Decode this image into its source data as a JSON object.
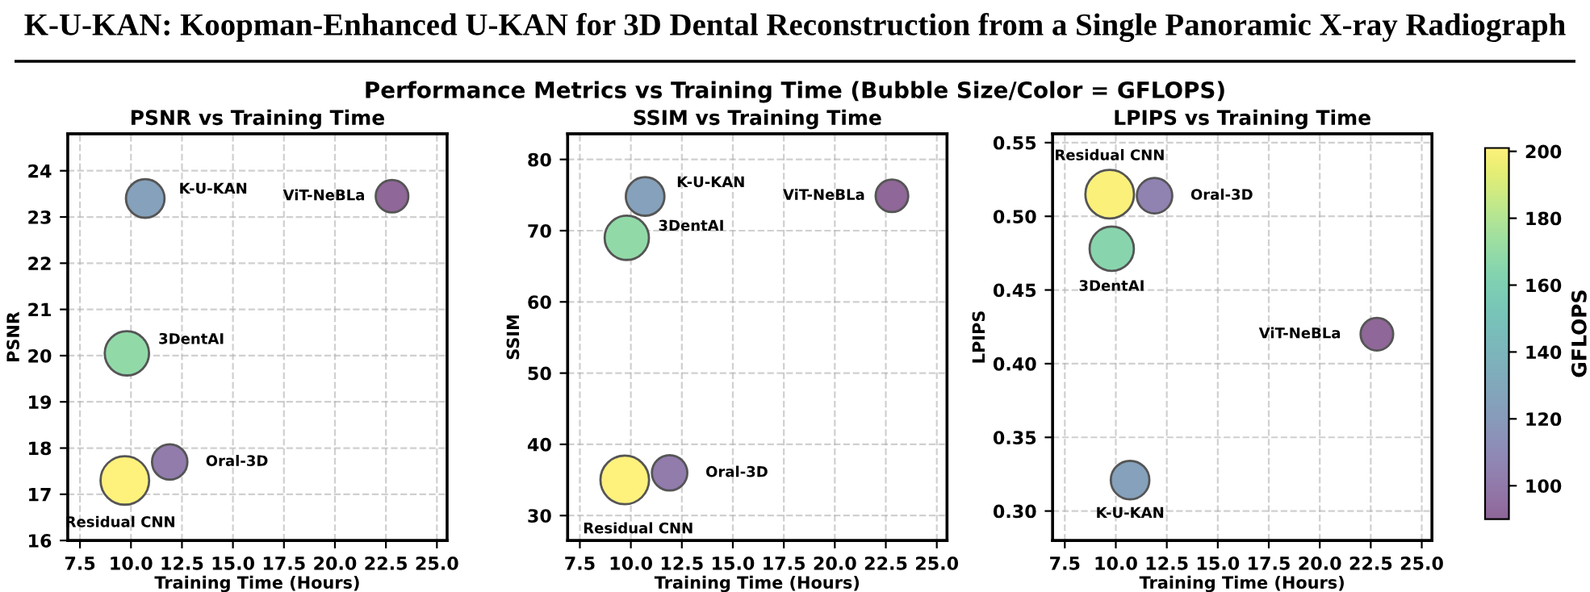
{
  "chart_data": [
    {
      "type": "bubble",
      "title": "PSNR vs Training Time",
      "xlabel": "Training Time (Hours)",
      "ylabel": "PSNR",
      "annotations": [
        "K-U-KAN: Koopman-Enhanced U-KAN for 3D Dental Reconstruction from a Single Panoramic X-ray Radiograph",
        "Performance Metrics vs Training Time (Bubble Size/Color = GFLOPS)"
      ],
      "xlim": [
        6.9,
        25.5
      ],
      "xticks": [
        {
          "value": 7.5,
          "label": "7.5"
        },
        {
          "value": 10,
          "label": "10.0"
        },
        {
          "value": 12.5,
          "label": "12.5"
        },
        {
          "value": 15,
          "label": "15.0"
        },
        {
          "value": 17.5,
          "label": "17.5"
        },
        {
          "value": 20,
          "label": "20.0"
        },
        {
          "value": 22.5,
          "label": "22.5"
        },
        {
          "value": 25,
          "label": "25.0"
        }
      ],
      "ylim": [
        16,
        24.8
      ],
      "yticks": [
        16,
        17,
        18,
        19,
        20,
        21,
        22,
        23,
        24
      ],
      "grid": true,
      "marker": "circle",
      "series": [
        {
          "name": "K-U-KAN",
          "x": [
            10.7
          ],
          "values": [
            23.4
          ],
          "sizes": [
            0.63
          ],
          "color": "#85a1bb"
        },
        {
          "name": "ViT-NeBLa",
          "x": [
            22.8
          ],
          "values": [
            23.45
          ],
          "sizes": [
            0.45
          ],
          "color": "#8f6798"
        },
        {
          "name": "3DentAI",
          "x": [
            9.8
          ],
          "values": [
            20.05
          ],
          "sizes": [
            0.83
          ],
          "color": "#91daa8"
        },
        {
          "name": "Oral-3D",
          "x": [
            11.9
          ],
          "values": [
            17.7
          ],
          "sizes": [
            0.53
          ],
          "color": "#917cac"
        },
        {
          "name": "Residual CNN",
          "x": [
            9.7
          ],
          "values": [
            17.3
          ],
          "sizes": [
            1.0
          ],
          "color": "#fef17c"
        }
      ]
    },
    {
      "type": "bubble",
      "title": "SSIM vs Training Time",
      "xlabel": "Training Time (Hours)",
      "ylabel": "SSIM",
      "xlim": [
        6.9,
        25.5
      ],
      "xticks": [
        {
          "value": 7.5,
          "label": "7.5"
        },
        {
          "value": 10,
          "label": "10.0"
        },
        {
          "value": 12.5,
          "label": "12.5"
        },
        {
          "value": 15,
          "label": "15.0"
        },
        {
          "value": 17.5,
          "label": "17.5"
        },
        {
          "value": 20,
          "label": "20.0"
        },
        {
          "value": 22.5,
          "label": "22.5"
        },
        {
          "value": 25,
          "label": "25.0"
        }
      ],
      "ylim": [
        26.5,
        83.6
      ],
      "yticks": [
        30,
        40,
        50,
        60,
        70,
        80
      ],
      "grid": true,
      "marker": "circle",
      "series": [
        {
          "name": "K-U-KAN",
          "x": [
            10.7
          ],
          "values": [
            74.8
          ],
          "sizes": [
            0.63
          ],
          "color": "#85a1bb"
        },
        {
          "name": "ViT-NeBLa",
          "x": [
            22.8
          ],
          "values": [
            74.9
          ],
          "sizes": [
            0.45
          ],
          "color": "#8f6798"
        },
        {
          "name": "3DentAI",
          "x": [
            9.8
          ],
          "values": [
            69.0
          ],
          "sizes": [
            0.83
          ],
          "color": "#91daa8"
        },
        {
          "name": "Oral-3D",
          "x": [
            11.9
          ],
          "values": [
            36.0
          ],
          "sizes": [
            0.53
          ],
          "color": "#917cac"
        },
        {
          "name": "Residual CNN",
          "x": [
            9.7
          ],
          "values": [
            35.0
          ],
          "sizes": [
            1.0
          ],
          "color": "#fef17c"
        }
      ]
    },
    {
      "type": "bubble",
      "title": "LPIPS vs Training Time",
      "xlabel": "Training Time (Hours)",
      "ylabel": "LPIPS",
      "clabel": "GFLOPS",
      "xlim": [
        6.9,
        25.5
      ],
      "xticks": [
        {
          "value": 7.5,
          "label": "7.5"
        },
        {
          "value": 10,
          "label": "10.0"
        },
        {
          "value": 12.5,
          "label": "12.5"
        },
        {
          "value": 15,
          "label": "15.0"
        },
        {
          "value": 17.5,
          "label": "17.5"
        },
        {
          "value": 20,
          "label": "20.0"
        },
        {
          "value": 22.5,
          "label": "22.5"
        },
        {
          "value": 25,
          "label": "25.0"
        }
      ],
      "ylim": [
        0.28,
        0.556
      ],
      "yticks": [
        {
          "value": 0.3,
          "label": "0.30"
        },
        {
          "value": 0.35,
          "label": "0.35"
        },
        {
          "value": 0.4,
          "label": "0.40"
        },
        {
          "value": 0.45,
          "label": "0.45"
        },
        {
          "value": 0.5,
          "label": "0.50"
        },
        {
          "value": 0.55,
          "label": "0.55"
        }
      ],
      "grid": true,
      "marker": "circle",
      "clim": [
        90,
        201
      ],
      "cticks": [
        100,
        120,
        140,
        160,
        180,
        200
      ],
      "series": [
        {
          "name": "K-U-KAN",
          "x": [
            10.7
          ],
          "values": [
            0.321
          ],
          "sizes": [
            0.63
          ],
          "cvalues": [
            125
          ]
        },
        {
          "name": "ViT-NeBLa",
          "x": [
            22.8
          ],
          "values": [
            0.42
          ],
          "sizes": [
            0.45
          ],
          "cvalues": [
            90
          ]
        },
        {
          "name": "3DentAI",
          "x": [
            9.8
          ],
          "values": [
            0.478
          ],
          "sizes": [
            0.83
          ],
          "cvalues": [
            165
          ]
        },
        {
          "name": "Oral-3D",
          "x": [
            11.9
          ],
          "values": [
            0.514
          ],
          "sizes": [
            0.53
          ],
          "cvalues": [
            105
          ]
        },
        {
          "name": "Residual CNN",
          "x": [
            9.7
          ],
          "values": [
            0.515
          ],
          "sizes": [
            1.0
          ],
          "cvalues": [
            200
          ]
        }
      ]
    }
  ]
}
